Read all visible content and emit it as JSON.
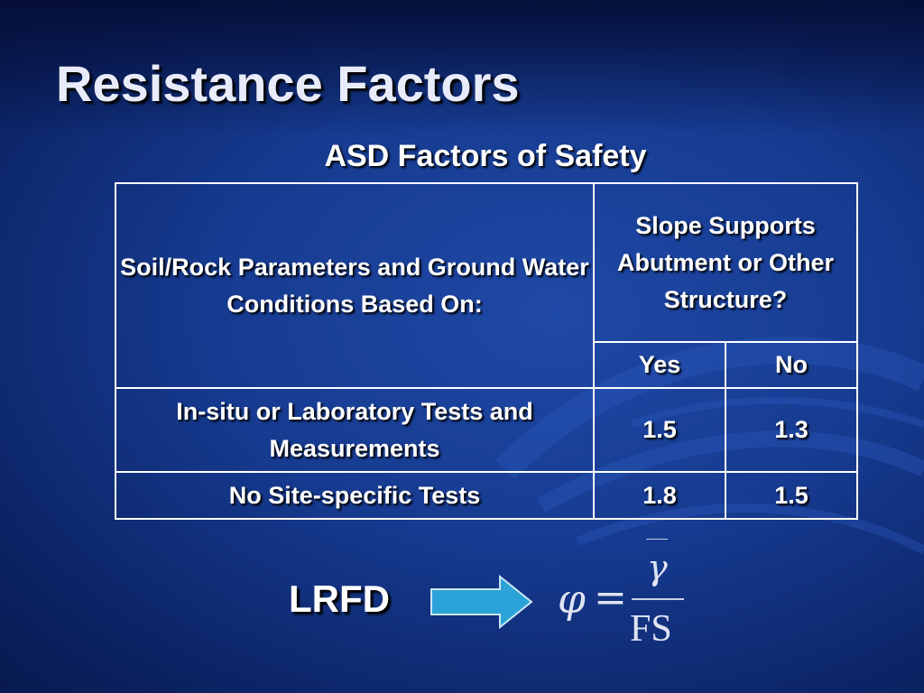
{
  "slide": {
    "title": "Resistance Factors",
    "subtitle": "ASD Factors of Safety"
  },
  "table": {
    "header_left": "Soil/Rock Parameters and Ground Water Conditions Based On:",
    "header_right": "Slope Supports Abutment or Other Structure?",
    "sub_yes": "Yes",
    "sub_no": "No",
    "rows": [
      {
        "label": "In-situ or Laboratory Tests and Measurements",
        "yes": "1.5",
        "no": "1.3"
      },
      {
        "label": "No Site-specific Tests",
        "yes": "1.8",
        "no": "1.5"
      }
    ]
  },
  "lrfd": {
    "label": "LRFD",
    "formula": {
      "lhs": "φ",
      "equals": "=",
      "numerator": "γ",
      "denominator": "FS"
    }
  },
  "colors": {
    "background": "#163a8f",
    "arrow": "#2ba3d8",
    "text": "#ffffff"
  }
}
